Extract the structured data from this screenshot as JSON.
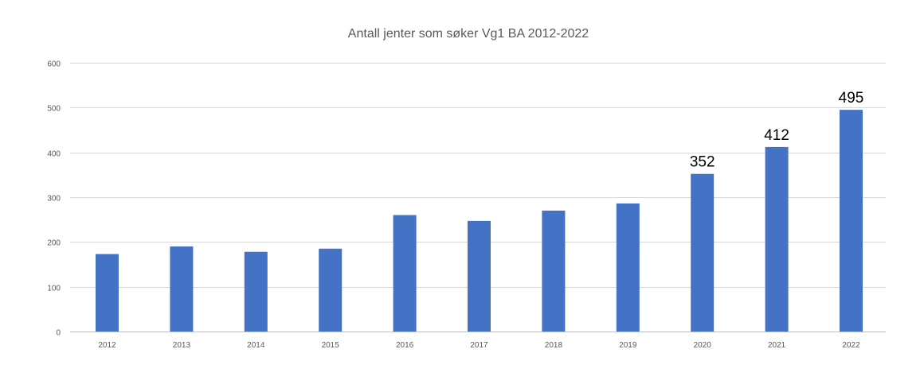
{
  "chart_data": {
    "type": "bar",
    "title": "Antall jenter som søker Vg1 BA 2012-2022",
    "xlabel": "",
    "ylabel": "",
    "categories": [
      "2012",
      "2013",
      "2014",
      "2015",
      "2016",
      "2017",
      "2018",
      "2019",
      "2020",
      "2021",
      "2022"
    ],
    "values": [
      173,
      190,
      178,
      185,
      260,
      247,
      270,
      286,
      352,
      412,
      495
    ],
    "data_labels": [
      "",
      "",
      "",
      "",
      "",
      "",
      "",
      "",
      "352",
      "412",
      "495"
    ],
    "ylim": [
      0,
      600
    ],
    "yticks": [
      "0",
      "100",
      "200",
      "300",
      "400",
      "500",
      "600"
    ],
    "grid": true,
    "legend": "none",
    "colors": {
      "bar": "#4472c4",
      "gridline": "#d9d9d9",
      "tick_text": "#595959",
      "title_text": "#595959",
      "data_label_text": "#000000"
    }
  }
}
